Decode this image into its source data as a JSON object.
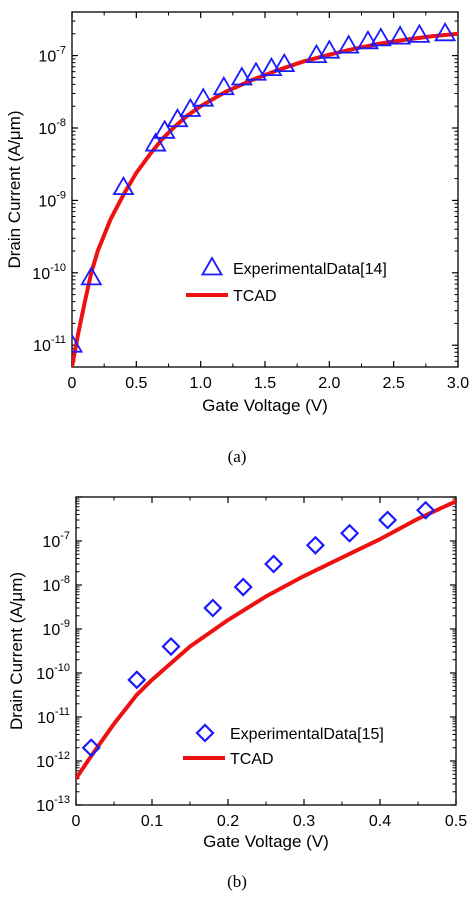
{
  "chart_data": [
    {
      "type": "scatter",
      "panel": "(a)",
      "xlabel": "Gate Voltage (V)",
      "ylabel": "Drain Current (A/μm)",
      "xlim": [
        0,
        3.0
      ],
      "ylim": [
        5e-12,
        4e-07
      ],
      "yscale": "log",
      "x_ticks": [
        "0",
        "0.5",
        "1.0",
        "1.5",
        "2.0",
        "2.5",
        "3.0"
      ],
      "y_ticks": [
        {
          "base": "10",
          "exp": "-11",
          "value": 1e-11
        },
        {
          "base": "10",
          "exp": "-10",
          "value": 1e-10
        },
        {
          "base": "10",
          "exp": "-9",
          "value": 1e-09
        },
        {
          "base": "10",
          "exp": "-8",
          "value": 1e-08
        },
        {
          "base": "10",
          "exp": "-7",
          "value": 1e-07
        }
      ],
      "legend_position": "center-right",
      "series": [
        {
          "name": "ExperimentalData[14]",
          "marker": "triangle",
          "color": "#1a1aff",
          "x": [
            0.0,
            0.15,
            0.4,
            0.65,
            0.72,
            0.82,
            0.92,
            1.02,
            1.18,
            1.32,
            1.43,
            1.55,
            1.65,
            1.9,
            2.0,
            2.15,
            2.3,
            2.4,
            2.55,
            2.7,
            2.9
          ],
          "y": [
            1e-11,
            8.5e-11,
            1.5e-09,
            6e-09,
            9e-09,
            1.3e-08,
            1.8e-08,
            2.5e-08,
            3.6e-08,
            4.9e-08,
            5.7e-08,
            6.6e-08,
            7.5e-08,
            1e-07,
            1.15e-07,
            1.35e-07,
            1.55e-07,
            1.7e-07,
            1.8e-07,
            1.9e-07,
            2e-07
          ]
        },
        {
          "name": "TCAD",
          "marker": "line",
          "color": "#ee1111",
          "x": [
            0.0,
            0.05,
            0.1,
            0.15,
            0.2,
            0.3,
            0.4,
            0.5,
            0.6,
            0.7,
            0.8,
            0.9,
            1.0,
            1.2,
            1.4,
            1.6,
            1.8,
            2.0,
            2.2,
            2.4,
            2.6,
            2.8,
            3.0
          ],
          "y": [
            5e-12,
            1.5e-11,
            4e-11,
            1e-10,
            2e-10,
            5.5e-10,
            1.2e-09,
            2.4e-09,
            4.2e-09,
            7e-09,
            1.05e-08,
            1.5e-08,
            2e-08,
            3.2e-08,
            4.6e-08,
            6.3e-08,
            8.3e-08,
            1.03e-07,
            1.25e-07,
            1.47e-07,
            1.67e-07,
            1.85e-07,
            2e-07
          ]
        }
      ]
    },
    {
      "type": "scatter",
      "panel": "(b)",
      "xlabel": "Gate Voltage (V)",
      "ylabel": "Drain Current (A/μm)",
      "xlim": [
        0,
        0.5
      ],
      "ylim": [
        1e-13,
        1e-06
      ],
      "yscale": "log",
      "x_ticks": [
        "0",
        "0.1",
        "0.2",
        "0.3",
        "0.4",
        "0.5"
      ],
      "y_ticks": [
        {
          "base": "10",
          "exp": "-13",
          "value": 1e-13
        },
        {
          "base": "10",
          "exp": "-12",
          "value": 1e-12
        },
        {
          "base": "10",
          "exp": "-11",
          "value": 1e-11
        },
        {
          "base": "10",
          "exp": "-10",
          "value": 1e-10
        },
        {
          "base": "10",
          "exp": "-9",
          "value": 1e-09
        },
        {
          "base": "10",
          "exp": "-8",
          "value": 1e-08
        },
        {
          "base": "10",
          "exp": "-7",
          "value": 1e-07
        }
      ],
      "legend_position": "bottom-right",
      "series": [
        {
          "name": "ExperimentalData[15]",
          "marker": "diamond",
          "color": "#1a1aff",
          "x": [
            0.02,
            0.08,
            0.125,
            0.18,
            0.22,
            0.26,
            0.315,
            0.36,
            0.41,
            0.46
          ],
          "y": [
            2e-12,
            7e-11,
            4e-10,
            3e-09,
            9e-09,
            3e-08,
            8e-08,
            1.5e-07,
            3e-07,
            5e-07
          ]
        },
        {
          "name": "TCAD",
          "marker": "line",
          "color": "#ee1111",
          "x": [
            0.0,
            0.02,
            0.05,
            0.08,
            0.1,
            0.15,
            0.2,
            0.25,
            0.3,
            0.35,
            0.4,
            0.45,
            0.5
          ],
          "y": [
            4e-13,
            1.3e-12,
            7e-12,
            3.2e-11,
            7e-11,
            4e-10,
            1.6e-09,
            5.5e-09,
            1.6e-08,
            4.2e-08,
            1.1e-07,
            3.2e-07,
            8e-07
          ]
        }
      ]
    }
  ],
  "captions": [
    "(a)",
    "(b)"
  ]
}
